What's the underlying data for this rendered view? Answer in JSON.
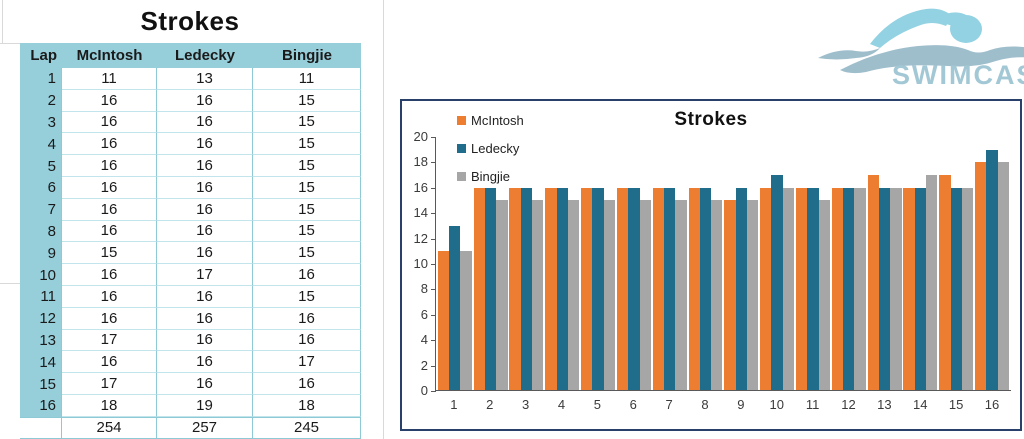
{
  "sheet": {
    "title": "Strokes",
    "columns": [
      "Lap",
      "McIntosh",
      "Ledecky",
      "Bingjie"
    ],
    "rows": [
      {
        "lap": "1",
        "values": [
          11,
          13,
          11
        ]
      },
      {
        "lap": "2",
        "values": [
          16,
          16,
          15
        ]
      },
      {
        "lap": "3",
        "values": [
          16,
          16,
          15
        ]
      },
      {
        "lap": "4",
        "values": [
          16,
          16,
          15
        ]
      },
      {
        "lap": "5",
        "values": [
          16,
          16,
          15
        ]
      },
      {
        "lap": "6",
        "values": [
          16,
          16,
          15
        ]
      },
      {
        "lap": "7",
        "values": [
          16,
          16,
          15
        ]
      },
      {
        "lap": "8",
        "values": [
          16,
          16,
          15
        ]
      },
      {
        "lap": "9",
        "values": [
          15,
          16,
          15
        ]
      },
      {
        "lap": "10",
        "values": [
          16,
          17,
          16
        ]
      },
      {
        "lap": "11",
        "values": [
          16,
          16,
          15
        ]
      },
      {
        "lap": "12",
        "values": [
          16,
          16,
          16
        ]
      },
      {
        "lap": "13",
        "values": [
          17,
          16,
          16
        ]
      },
      {
        "lap": "14",
        "values": [
          16,
          16,
          17
        ]
      },
      {
        "lap": "15",
        "values": [
          17,
          16,
          16
        ]
      },
      {
        "lap": "16",
        "values": [
          18,
          19,
          18
        ]
      }
    ],
    "totals": [
      "254",
      "257",
      "245"
    ]
  },
  "chart_data": {
    "type": "bar",
    "title": "Strokes",
    "categories": [
      "1",
      "2",
      "3",
      "4",
      "5",
      "6",
      "7",
      "8",
      "9",
      "10",
      "11",
      "12",
      "13",
      "14",
      "15",
      "16"
    ],
    "series": [
      {
        "name": "McIntosh",
        "color": "#ed7d31",
        "values": [
          11,
          16,
          16,
          16,
          16,
          16,
          16,
          16,
          15,
          16,
          16,
          16,
          17,
          16,
          17,
          18
        ]
      },
      {
        "name": "Ledecky",
        "color": "#1f6c8b",
        "values": [
          13,
          16,
          16,
          16,
          16,
          16,
          16,
          16,
          16,
          17,
          16,
          16,
          16,
          16,
          16,
          19
        ]
      },
      {
        "name": "Bingjie",
        "color": "#a6a6a6",
        "values": [
          11,
          15,
          15,
          15,
          15,
          15,
          15,
          15,
          15,
          16,
          15,
          16,
          16,
          17,
          16,
          18
        ]
      }
    ],
    "xlabel": "",
    "ylabel": "",
    "ylim": [
      0,
      20
    ],
    "ytick_step": 2,
    "grid": false,
    "legend_position": "top-left"
  },
  "logo": {
    "text": "SWIMCAST"
  },
  "colors": {
    "table_header_bg": "#96ceda",
    "table_border": "#8ec9d6",
    "chart_border": "#29406b",
    "logo_blue": "#a3c8d5",
    "logo_cyan": "#92d2e2",
    "logo_body": "#9fbecc"
  }
}
